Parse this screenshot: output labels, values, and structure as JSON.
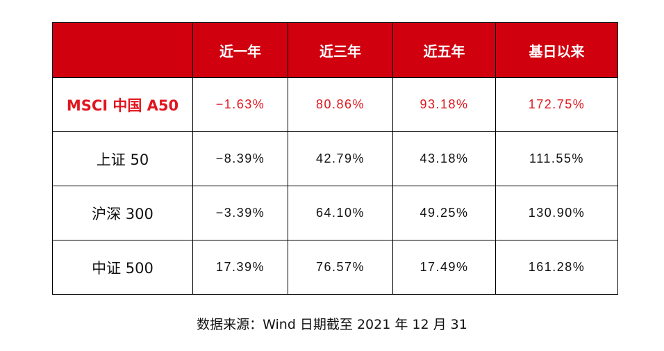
{
  "table": {
    "columns": [
      "近一年",
      "近三年",
      "近五年",
      "基日以来"
    ],
    "rows": [
      {
        "name": "MSCI 中国 A50",
        "values": [
          "−1.63%",
          "80.86%",
          "93.18%",
          "172.75%"
        ]
      },
      {
        "name": "上证 50",
        "values": [
          "−8.39%",
          "42.79%",
          "43.18%",
          "111.55%"
        ]
      },
      {
        "name": "沪深 300",
        "values": [
          "−3.39%",
          "64.10%",
          "49.25%",
          "130.90%"
        ]
      },
      {
        "name": "中证 500",
        "values": [
          "17.39%",
          "76.57%",
          "17.49%",
          "161.28%"
        ]
      }
    ]
  },
  "source": "数据来源：Wind  日期截至 2021 年 12 月 31"
}
